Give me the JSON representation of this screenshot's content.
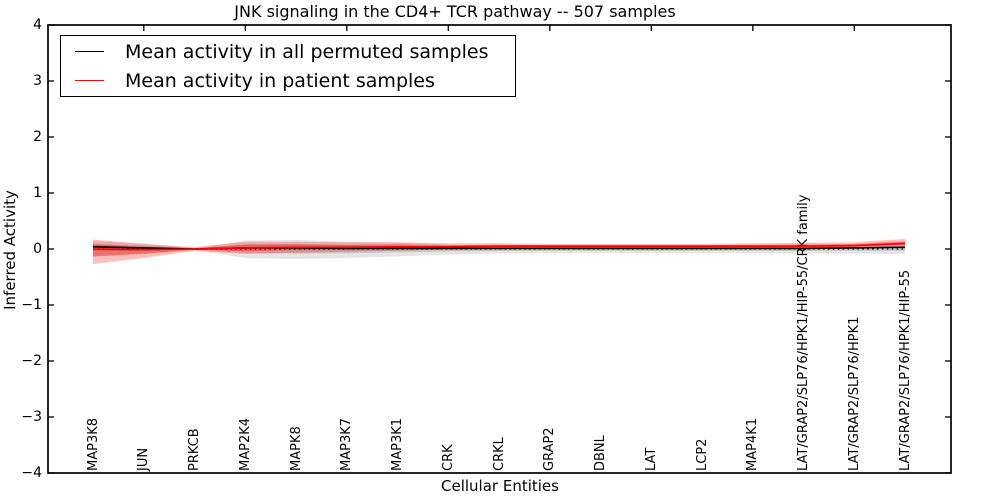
{
  "chart_data": {
    "type": "line",
    "title": "JNK signaling in the CD4+ TCR pathway -- 507 samples",
    "xlabel": "Cellular Entities",
    "ylabel": "Inferred Activity",
    "ylim": [
      -4,
      4
    ],
    "yticks": [
      4,
      3,
      2,
      1,
      0,
      -1,
      -2,
      -3,
      -4
    ],
    "grid": false,
    "legend_position": "upper left",
    "zero_reference_line": 0,
    "categories": [
      "MAP3K8",
      "JUN",
      "PRKCB",
      "MAP2K4",
      "MAPK8",
      "MAP3K7",
      "MAP3K1",
      "CRK",
      "CRKL",
      "GRAP2",
      "DBNL",
      "LAT",
      "LCP2",
      "MAP4K1",
      "LAT/GRAP2/SLP76/HPK1/HIP-55/CRK family",
      "LAT/GRAP2/SLP76/HPK1",
      "LAT/GRAP2/SLP76/HPK1/HIP-55"
    ],
    "series": [
      {
        "name": "Mean activity in all permuted samples",
        "color": "#000000",
        "band_color_outer": "rgba(0,0,0,0.10)",
        "band_color_inner": "rgba(0,0,0,0.13)",
        "mean": [
          0.04,
          0.02,
          0.0,
          0.02,
          0.02,
          0.01,
          0.01,
          0.01,
          0.01,
          0.01,
          0.01,
          0.01,
          0.01,
          0.01,
          0.01,
          0.02,
          0.03
        ],
        "hi": [
          0.14,
          0.1,
          0.02,
          0.15,
          0.16,
          0.13,
          0.11,
          0.08,
          0.06,
          0.05,
          0.05,
          0.05,
          0.05,
          0.06,
          0.06,
          0.06,
          0.08
        ],
        "lo": [
          -0.12,
          -0.09,
          -0.02,
          -0.16,
          -0.18,
          -0.16,
          -0.13,
          -0.1,
          -0.08,
          -0.07,
          -0.07,
          -0.07,
          -0.07,
          -0.07,
          -0.08,
          -0.08,
          -0.09
        ]
      },
      {
        "name": "Mean activity in patient samples",
        "color": "#ff0000",
        "band_color_outer": "rgba(255,0,0,0.25)",
        "band_color_inner": "rgba(255,0,0,0.35)",
        "mean": [
          0.0,
          -0.01,
          0.0,
          0.02,
          0.03,
          0.03,
          0.04,
          0.04,
          0.05,
          0.05,
          0.05,
          0.05,
          0.05,
          0.05,
          0.05,
          0.06,
          0.1
        ],
        "hi": [
          0.17,
          0.09,
          0.03,
          0.13,
          0.13,
          0.12,
          0.12,
          0.1,
          0.1,
          0.09,
          0.09,
          0.09,
          0.09,
          0.1,
          0.11,
          0.12,
          0.18
        ],
        "lo": [
          -0.27,
          -0.16,
          -0.03,
          -0.09,
          -0.07,
          -0.05,
          -0.03,
          -0.01,
          0.0,
          0.0,
          0.0,
          0.0,
          0.0,
          0.0,
          0.01,
          0.02,
          0.03
        ]
      }
    ]
  }
}
